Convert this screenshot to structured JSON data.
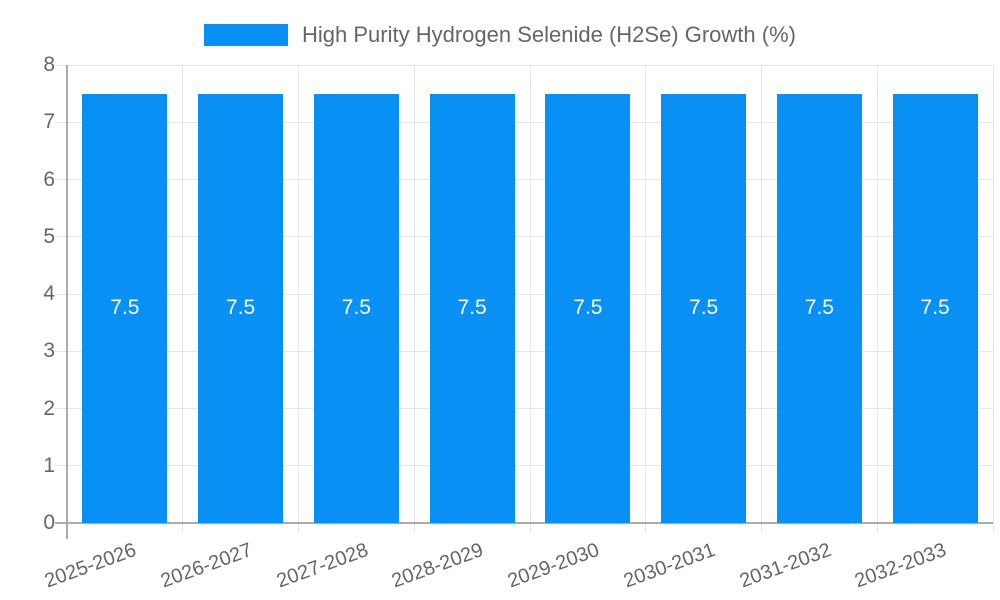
{
  "chart_data": {
    "type": "bar",
    "legend": {
      "label": "High Purity Hydrogen Selenide (H2Se) Growth (%)",
      "position": "top"
    },
    "categories": [
      "2025-2026",
      "2026-2027",
      "2027-2028",
      "2028-2029",
      "2029-2030",
      "2030-2031",
      "2031-2032",
      "2032-2033"
    ],
    "series": [
      {
        "name": "High Purity Hydrogen Selenide (H2Se) Growth (%)",
        "values": [
          7.5,
          7.5,
          7.5,
          7.5,
          7.5,
          7.5,
          7.5,
          7.5
        ],
        "value_labels": [
          "7.5",
          "7.5",
          "7.5",
          "7.5",
          "7.5",
          "7.5",
          "7.5",
          "7.5"
        ]
      }
    ],
    "xlabel": "",
    "ylabel": "",
    "ylim": [
      0,
      8
    ],
    "yticks": [
      0,
      1,
      2,
      3,
      4,
      5,
      6,
      7,
      8
    ],
    "ytick_labels": [
      "0",
      "1",
      "2",
      "3",
      "4",
      "5",
      "6",
      "7",
      "8"
    ],
    "grid": true,
    "x_tick_rotation_deg": -20,
    "colors": {
      "bar": "#0890f5",
      "grid": "#e6e6e6",
      "axis": "#ababab",
      "tick_label": "#666666",
      "legend_text": "#666666",
      "value_label": "#ffffff",
      "background": "#ffffff"
    }
  }
}
